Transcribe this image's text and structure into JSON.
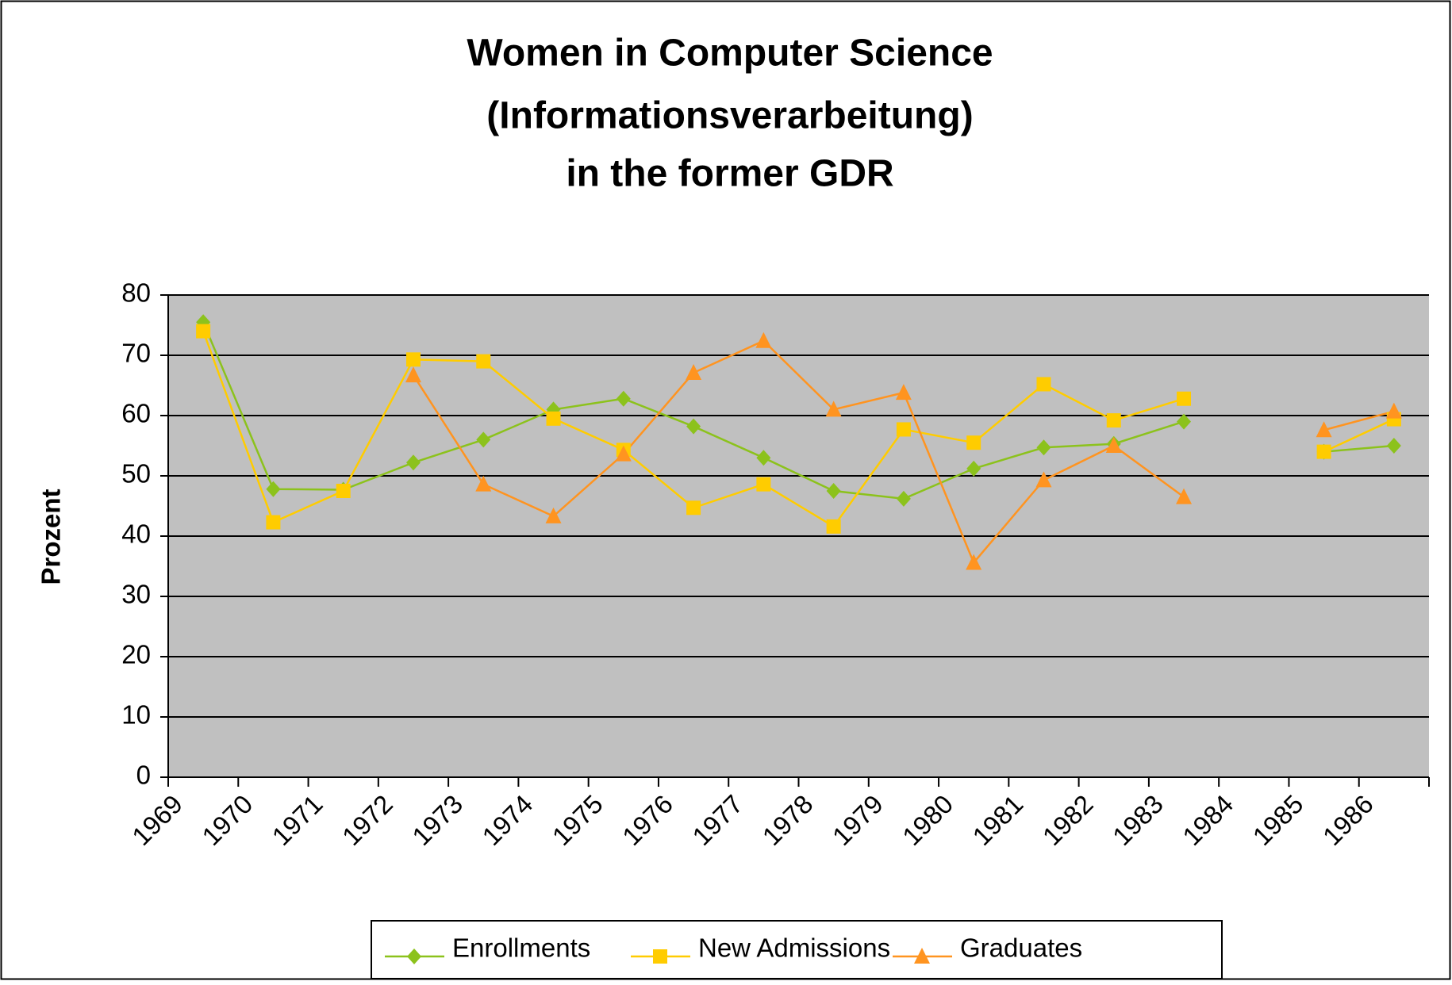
{
  "chart_data": {
    "type": "line",
    "title": [
      "Women in Computer Science",
      "(Informationsverarbeitung)",
      "in the former GDR"
    ],
    "y_label": "Prozent",
    "categories": [
      "1969",
      "1970",
      "1971",
      "1972",
      "1973",
      "1974",
      "1975",
      "1976",
      "1977",
      "1978",
      "1979",
      "1980",
      "1981",
      "1982",
      "1983",
      "1984",
      "1985",
      "1986"
    ],
    "series": [
      {
        "name": "Enrollments",
        "color": "#8cc21c",
        "marker": "diamond",
        "values": [
          75.5,
          47.8,
          47.7,
          52.2,
          56,
          61,
          62.8,
          58.2,
          53,
          47.5,
          46.2,
          51.2,
          54.7,
          55.3,
          59,
          null,
          54,
          55
        ]
      },
      {
        "name": "New Admissions",
        "color": "#ffcc00",
        "marker": "square",
        "values": [
          74,
          42.3,
          47.5,
          69.3,
          69,
          59.5,
          54.3,
          44.7,
          48.6,
          41.6,
          57.7,
          55.5,
          65.2,
          59.2,
          62.8,
          null,
          54,
          59.4
        ]
      },
      {
        "name": "Graduates",
        "color": "#ff9420",
        "marker": "triangle",
        "values": [
          null,
          null,
          null,
          66.7,
          48.6,
          43.3,
          53.6,
          67.1,
          72.4,
          61,
          63.8,
          35.6,
          49.3,
          55,
          46.5,
          null,
          57.6,
          60.7
        ]
      }
    ],
    "ylim": [
      0,
      80
    ],
    "yticks": [
      0,
      10,
      20,
      30,
      40,
      50,
      60,
      70,
      80
    ],
    "grid": true,
    "legend": "bottom",
    "plot_background": "#c0c0c0"
  }
}
